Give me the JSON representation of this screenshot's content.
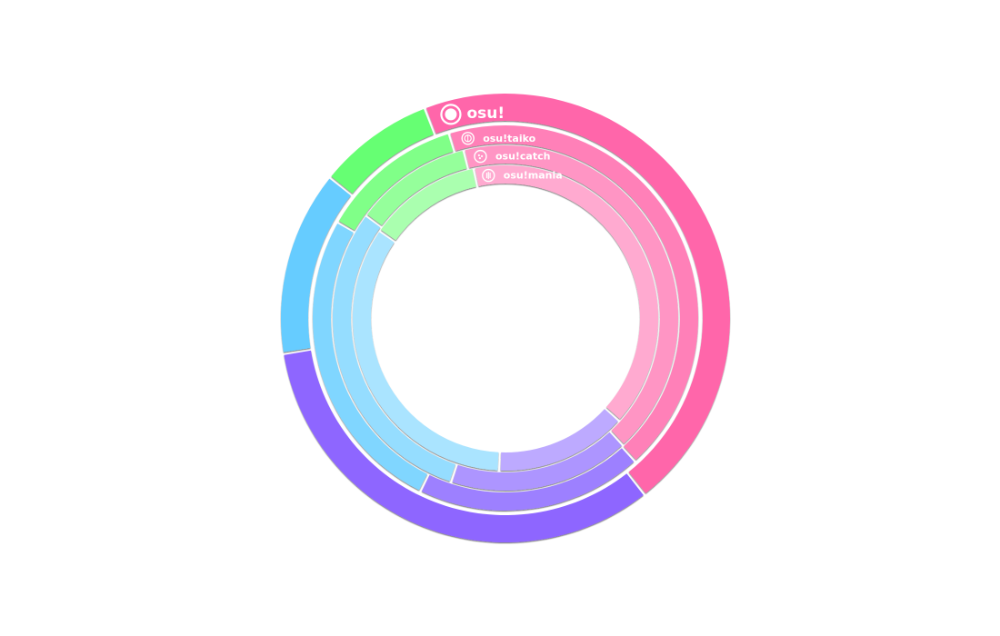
{
  "rulesets": [
    {
      "name": "osu!",
      "icon": "osu-standard-icon",
      "segments": [
        {
          "color": "#ff66aa",
          "share": 0.452
        },
        {
          "color": "#8e66ff",
          "share": 0.331
        },
        {
          "color": "#66ccff",
          "share": 0.133
        },
        {
          "color": "#66ff73",
          "share": 0.084
        }
      ]
    },
    {
      "name": "osu!taiko",
      "icon": "osu-taiko-icon",
      "segments": [
        {
          "color": "#ff80b8",
          "share": 0.43
        },
        {
          "color": "#9d80ff",
          "share": 0.19
        },
        {
          "color": "#80d6ff",
          "share": 0.26
        },
        {
          "color": "#80ff88",
          "share": 0.12
        }
      ]
    },
    {
      "name": "osu!catch",
      "icon": "osu-catch-icon",
      "segments": [
        {
          "color": "#ff95c4",
          "share": 0.42
        },
        {
          "color": "#ad95ff",
          "share": 0.17
        },
        {
          "color": "#95ddff",
          "share": 0.3
        },
        {
          "color": "#95ff9b",
          "share": 0.11
        }
      ]
    },
    {
      "name": "osu!mania",
      "icon": "osu-mania-icon",
      "segments": [
        {
          "color": "#ffaad0",
          "share": 0.4
        },
        {
          "color": "#bdaaff",
          "share": 0.14
        },
        {
          "color": "#aae4ff",
          "share": 0.34
        },
        {
          "color": "#aaffaf",
          "share": 0.12
        }
      ]
    }
  ]
}
